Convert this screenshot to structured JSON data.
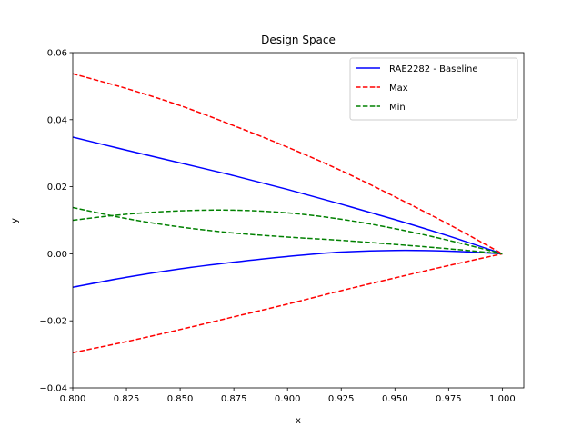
{
  "chart_data": {
    "type": "line",
    "title": "Design Space",
    "xlabel": "x",
    "ylabel": "y",
    "xlim": [
      0.8,
      1.01
    ],
    "ylim": [
      -0.04,
      0.06
    ],
    "xticks": [
      0.8,
      0.825,
      0.85,
      0.875,
      0.9,
      0.925,
      0.95,
      0.975,
      1.0
    ],
    "xtick_labels": [
      "0.800",
      "0.825",
      "0.850",
      "0.875",
      "0.900",
      "0.925",
      "0.950",
      "0.975",
      "1.000"
    ],
    "yticks": [
      -0.04,
      -0.02,
      0.0,
      0.02,
      0.04,
      0.06
    ],
    "ytick_labels": [
      "−0.04",
      "−0.02",
      "0.00",
      "0.02",
      "0.04",
      "0.06"
    ],
    "grid": false,
    "legend_position": "top-right",
    "legend": [
      {
        "label": "RAE2282 - Baseline",
        "color": "#0000ff",
        "dash": "solid"
      },
      {
        "label": "Max",
        "color": "#ff0000",
        "dash": "dashed"
      },
      {
        "label": "Min",
        "color": "#008000",
        "dash": "dashed"
      }
    ],
    "series": [
      {
        "name": "RAE2282 - Baseline",
        "color": "#0000ff",
        "dash": "solid",
        "x": [
          0.8,
          0.825,
          0.85,
          0.875,
          0.9,
          0.925,
          0.95,
          0.975,
          1.0
        ],
        "y": [
          0.0348,
          0.0309,
          0.0271,
          0.0233,
          0.0192,
          0.0148,
          0.0102,
          0.0053,
          0.0
        ]
      },
      {
        "name": "RAE2282 - Baseline",
        "color": "#0000ff",
        "dash": "solid",
        "x": [
          0.8,
          0.825,
          0.85,
          0.875,
          0.9,
          0.925,
          0.95,
          0.975,
          1.0
        ],
        "y": [
          -0.01,
          -0.007,
          -0.0045,
          -0.0025,
          -0.0008,
          0.0005,
          0.001,
          0.0008,
          0.0
        ]
      },
      {
        "name": "Max",
        "color": "#ff0000",
        "dash": "dashed",
        "x": [
          0.8,
          0.825,
          0.85,
          0.875,
          0.9,
          0.925,
          0.95,
          0.975,
          1.0
        ],
        "y": [
          0.0537,
          0.0493,
          0.0442,
          0.0382,
          0.0318,
          0.0248,
          0.017,
          0.0088,
          0.0
        ]
      },
      {
        "name": "Max",
        "color": "#ff0000",
        "dash": "dashed",
        "x": [
          0.8,
          0.825,
          0.85,
          0.875,
          0.9,
          0.925,
          0.95,
          0.975,
          1.0
        ],
        "y": [
          -0.0295,
          -0.0262,
          -0.0226,
          -0.0188,
          -0.015,
          -0.011,
          -0.0072,
          -0.0035,
          0.0
        ]
      },
      {
        "name": "Min",
        "color": "#008000",
        "dash": "dashed",
        "x": [
          0.8,
          0.825,
          0.85,
          0.875,
          0.9,
          0.925,
          0.95,
          0.975,
          1.0
        ],
        "y": [
          0.01,
          0.0118,
          0.0128,
          0.013,
          0.0122,
          0.0103,
          0.0075,
          0.004,
          0.0
        ]
      },
      {
        "name": "Min",
        "color": "#008000",
        "dash": "dashed",
        "x": [
          0.8,
          0.825,
          0.85,
          0.875,
          0.9,
          0.925,
          0.95,
          0.975,
          1.0
        ],
        "y": [
          0.0138,
          0.0105,
          0.008,
          0.0062,
          0.005,
          0.004,
          0.0028,
          0.0015,
          0.0
        ]
      }
    ]
  }
}
